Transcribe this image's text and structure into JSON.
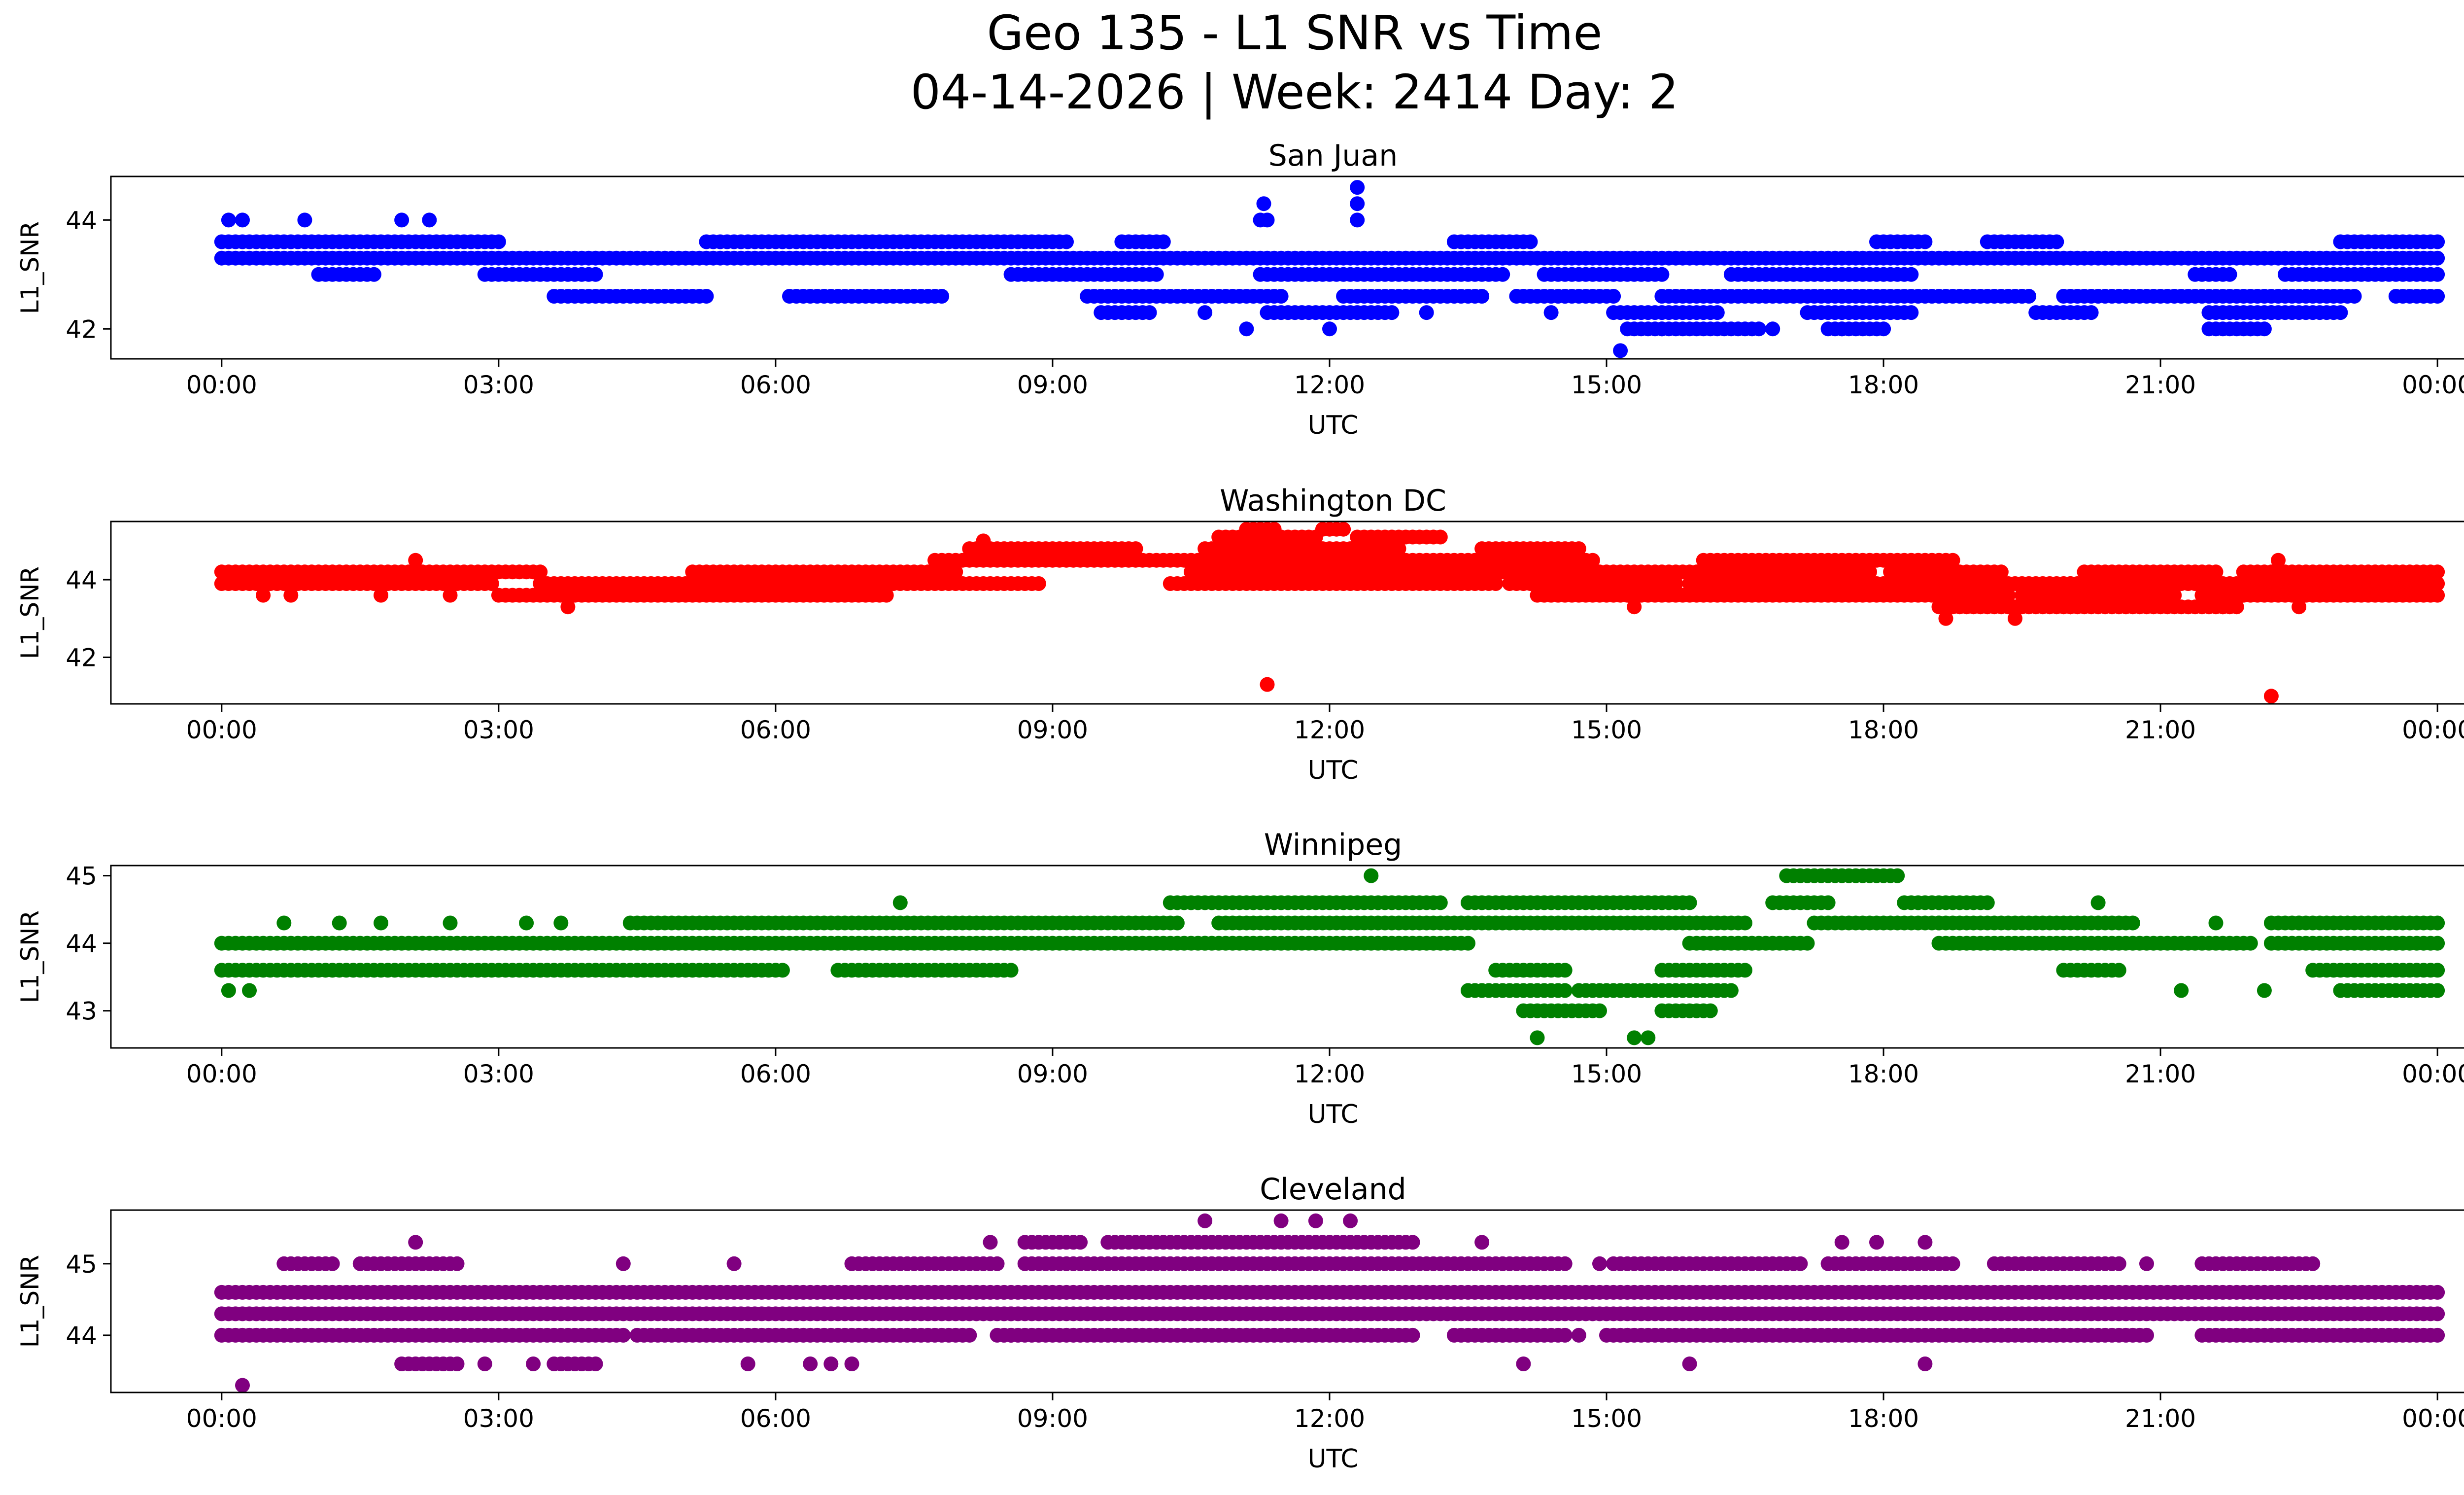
{
  "figure": {
    "title_line1": "Geo 135 - L1 SNR vs Time",
    "title_line2": "04-14-2026 | Week: 2414 Day: 2"
  },
  "chart_data": [
    {
      "type": "scatter",
      "title": "San Juan",
      "xlabel": "UTC",
      "ylabel": "L1_SNR",
      "color": "#0000ff",
      "xlim": [
        -1.6,
        33.7
      ],
      "ylim": [
        41.45,
        44.8
      ],
      "yticks": [
        42,
        44
      ],
      "xticks": [
        0,
        4,
        8,
        12,
        16,
        20,
        24,
        28,
        32
      ],
      "xticklabels": [
        "00:00",
        "03:00",
        "06:00",
        "09:00",
        "12:00",
        "15:00",
        "18:00",
        "21:00",
        "00:00"
      ],
      "levels": [
        {
          "y": 43.6,
          "ranges": [
            [
              0,
              4.0
            ],
            [
              7.0,
              12.2
            ],
            [
              13.0,
              13.6
            ],
            [
              17.8,
              18.9
            ],
            [
              23.9,
              24.6
            ],
            [
              25.5,
              26.5
            ],
            [
              30.6,
              32.0
            ]
          ]
        },
        {
          "y": 43.3,
          "ranges": [
            [
              0,
              32.0
            ]
          ]
        },
        {
          "y": 43.0,
          "ranges": [
            [
              1.4,
              2.2
            ],
            [
              3.8,
              5.4
            ],
            [
              11.4,
              13.5
            ],
            [
              15.0,
              18.5
            ],
            [
              19.1,
              20.8
            ],
            [
              21.8,
              24.4
            ],
            [
              28.5,
              29.0
            ],
            [
              29.8,
              32.0
            ]
          ]
        },
        {
          "y": 42.6,
          "ranges": [
            [
              4.8,
              7.0
            ],
            [
              8.2,
              10.4
            ],
            [
              12.5,
              15.3
            ],
            [
              16.2,
              18.2
            ],
            [
              18.7,
              20.1
            ],
            [
              20.8,
              23.4
            ],
            [
              23.4,
              26.1
            ],
            [
              26.6,
              30.8
            ],
            [
              31.4,
              32.0
            ]
          ]
        },
        {
          "y": 42.3,
          "ranges": [
            [
              12.7,
              13.4
            ],
            [
              15.2,
              16.9
            ],
            [
              20.1,
              21.6
            ],
            [
              22.9,
              24.4
            ],
            [
              26.2,
              27.0
            ],
            [
              28.7,
              30.6
            ]
          ]
        },
        {
          "y": 42.0,
          "ranges": [
            [
              20.3,
              22.2
            ],
            [
              23.2,
              24.0
            ],
            [
              28.8,
              29.5
            ]
          ]
        }
      ],
      "extra_points": [
        [
          0.1,
          44.0
        ],
        [
          0.3,
          44.0
        ],
        [
          1.2,
          44.0
        ],
        [
          2.6,
          44.0
        ],
        [
          3.0,
          44.0
        ],
        [
          15.0,
          44.0
        ],
        [
          15.05,
          44.3
        ],
        [
          15.1,
          44.0
        ],
        [
          16.4,
          44.0
        ],
        [
          16.4,
          44.3
        ],
        [
          16.4,
          44.6
        ],
        [
          14.8,
          42.0
        ],
        [
          14.2,
          42.3
        ],
        [
          15.1,
          42.3
        ],
        [
          16.0,
          42.0
        ],
        [
          17.4,
          42.3
        ],
        [
          19.2,
          42.3
        ],
        [
          19.4,
          42.6
        ],
        [
          20.2,
          41.6
        ],
        [
          20.8,
          42.0
        ],
        [
          22.4,
          42.0
        ],
        [
          23.4,
          42.0
        ],
        [
          23.6,
          42.3
        ],
        [
          26.0,
          42.6
        ],
        [
          28.7,
          42.0
        ],
        [
          29.3,
          42.0
        ],
        [
          29.6,
          42.3
        ]
      ]
    },
    {
      "type": "scatter",
      "title": "Washington DC",
      "xlabel": "UTC",
      "ylabel": "L1_SNR",
      "color": "#ff0000",
      "xlim": [
        -1.6,
        33.7
      ],
      "ylim": [
        40.8,
        45.5
      ],
      "yticks": [
        42,
        44
      ],
      "xticks": [
        0,
        4,
        8,
        12,
        16,
        20,
        24,
        28,
        32
      ],
      "xticklabels": [
        "00:00",
        "03:00",
        "06:00",
        "09:00",
        "12:00",
        "15:00",
        "18:00",
        "21:00",
        "00:00"
      ],
      "levels": [
        {
          "y": 44.2,
          "ranges": [
            [
              0,
              4.6
            ],
            [
              6.8,
              10.6
            ],
            [
              14.0,
              21.8
            ],
            [
              21.9,
              23.8
            ],
            [
              24.1,
              25.7
            ],
            [
              26.9,
              28.8
            ],
            [
              29.2,
              32.0
            ]
          ]
        },
        {
          "y": 43.9,
          "ranges": [
            [
              0,
              3.9
            ],
            [
              4.6,
              9.6
            ],
            [
              9.6,
              11.8
            ],
            [
              13.7,
              18.4
            ],
            [
              18.6,
              21.0
            ],
            [
              21.2,
              26.7
            ],
            [
              26.7,
              32.0
            ]
          ]
        },
        {
          "y": 43.6,
          "ranges": [
            [
              4.0,
              9.6
            ],
            [
              19.0,
              25.8
            ],
            [
              26.0,
              28.2
            ],
            [
              28.6,
              32.0
            ]
          ]
        },
        {
          "y": 43.3,
          "ranges": [
            [
              24.8,
              28.4
            ],
            [
              28.5,
              29.1
            ]
          ]
        },
        {
          "y": 44.5,
          "ranges": [
            [
              10.3,
              17.6
            ],
            [
              17.6,
              19.8
            ],
            [
              21.4,
              25.0
            ]
          ]
        },
        {
          "y": 44.8,
          "ranges": [
            [
              10.8,
              13.2
            ],
            [
              14.2,
              17.0
            ],
            [
              18.2,
              19.6
            ]
          ]
        },
        {
          "y": 45.1,
          "ranges": [
            [
              14.4,
              15.8
            ],
            [
              16.4,
              17.6
            ]
          ]
        },
        {
          "y": 45.3,
          "ranges": [
            [
              14.8,
              15.2
            ],
            [
              15.9,
              16.2
            ]
          ]
        }
      ],
      "extra_points": [
        [
          0.6,
          43.6
        ],
        [
          1.0,
          43.6
        ],
        [
          2.3,
          43.6
        ],
        [
          3.3,
          43.6
        ],
        [
          2.8,
          44.5
        ],
        [
          5.0,
          43.3
        ],
        [
          11.0,
          45.0
        ],
        [
          15.1,
          41.3
        ],
        [
          20.4,
          43.3
        ],
        [
          24.9,
          43.0
        ],
        [
          25.9,
          43.0
        ],
        [
          26.7,
          43.3
        ],
        [
          28.0,
          43.6
        ],
        [
          29.7,
          44.5
        ],
        [
          29.6,
          41.0
        ],
        [
          28.9,
          43.3
        ],
        [
          30.0,
          43.3
        ]
      ]
    },
    {
      "type": "scatter",
      "title": "Winnipeg",
      "xlabel": "UTC",
      "ylabel": "L1_SNR",
      "color": "#008000",
      "xlim": [
        -1.6,
        33.7
      ],
      "ylim": [
        42.45,
        45.15
      ],
      "yticks": [
        43,
        44,
        45
      ],
      "xticks": [
        0,
        4,
        8,
        12,
        16,
        20,
        24,
        28,
        32
      ],
      "xticklabels": [
        "00:00",
        "03:00",
        "06:00",
        "09:00",
        "12:00",
        "15:00",
        "18:00",
        "21:00",
        "00:00"
      ],
      "levels": [
        {
          "y": 44.0,
          "ranges": [
            [
              0,
              14.2
            ],
            [
              14.2,
              18.0
            ],
            [
              21.2,
              22.8
            ],
            [
              24.8,
              29.3
            ],
            [
              29.6,
              32.0
            ]
          ]
        },
        {
          "y": 43.6,
          "ranges": [
            [
              0,
              4.6
            ],
            [
              4.6,
              6.0
            ],
            [
              6.0,
              8.1
            ],
            [
              8.9,
              11.4
            ],
            [
              18.4,
              19.4
            ],
            [
              20.8,
              22.0
            ],
            [
              26.6,
              27.4
            ],
            [
              30.2,
              32.0
            ]
          ]
        },
        {
          "y": 44.3,
          "ranges": [
            [
              5.9,
              13.8
            ],
            [
              14.4,
              18.4
            ],
            [
              18.3,
              22.0
            ],
            [
              23.0,
              24.8
            ],
            [
              24.8,
              27.6
            ],
            [
              29.6,
              32.0
            ]
          ]
        },
        {
          "y": 44.6,
          "ranges": [
            [
              13.7,
              17.6
            ],
            [
              18.0,
              21.2
            ],
            [
              22.4,
              23.2
            ],
            [
              24.3,
              25.5
            ]
          ]
        },
        {
          "y": 43.3,
          "ranges": [
            [
              18.0,
              19.4
            ],
            [
              19.6,
              21.8
            ],
            [
              30.6,
              32.0
            ]
          ]
        },
        {
          "y": 43.0,
          "ranges": [
            [
              18.8,
              19.9
            ],
            [
              20.8,
              21.5
            ]
          ]
        },
        {
          "y": 45.0,
          "ranges": [
            [
              22.6,
              24.2
            ]
          ]
        }
      ],
      "extra_points": [
        [
          0.1,
          43.3
        ],
        [
          0.4,
          43.3
        ],
        [
          0.9,
          44.3
        ],
        [
          1.7,
          44.3
        ],
        [
          2.3,
          44.3
        ],
        [
          3.3,
          44.3
        ],
        [
          4.4,
          44.3
        ],
        [
          4.9,
          44.3
        ],
        [
          9.8,
          44.6
        ],
        [
          9.3,
          43.6
        ],
        [
          9.9,
          43.6
        ],
        [
          15.0,
          44.0
        ],
        [
          17.2,
          44.6
        ],
        [
          16.6,
          45.0
        ],
        [
          18.6,
          44.3
        ],
        [
          21.2,
          43.6
        ],
        [
          19.0,
          42.6
        ],
        [
          20.4,
          42.6
        ],
        [
          20.6,
          42.6
        ],
        [
          21.0,
          43.6
        ],
        [
          22.9,
          44.0
        ],
        [
          27.1,
          44.6
        ],
        [
          28.3,
          43.3
        ],
        [
          29.5,
          43.3
        ],
        [
          28.8,
          44.3
        ],
        [
          30.0,
          44.3
        ]
      ]
    },
    {
      "type": "scatter",
      "title": "Cleveland",
      "xlabel": "UTC",
      "ylabel": "L1_SNR",
      "color": "#800080",
      "xlim": [
        -1.6,
        33.7
      ],
      "ylim": [
        43.2,
        45.75
      ],
      "yticks": [
        44,
        45
      ],
      "xticks": [
        0,
        4,
        8,
        12,
        16,
        20,
        24,
        28,
        32
      ],
      "xticklabels": [
        "00:00",
        "03:00",
        "06:00",
        "09:00",
        "12:00",
        "15:00",
        "18:00",
        "21:00",
        "00:00"
      ],
      "levels": [
        {
          "y": 44.6,
          "ranges": [
            [
              0,
              32.0
            ]
          ]
        },
        {
          "y": 44.3,
          "ranges": [
            [
              0,
              11.4
            ],
            [
              11.4,
              17.2
            ],
            [
              17.2,
              32.0
            ]
          ]
        },
        {
          "y": 44.0,
          "ranges": [
            [
              0,
              5.8
            ],
            [
              6.0,
              10.8
            ],
            [
              11.2,
              17.2
            ],
            [
              17.8,
              19.4
            ],
            [
              20.0,
              27.8
            ],
            [
              28.6,
              32.0
            ]
          ]
        },
        {
          "y": 45.0,
          "ranges": [
            [
              0.9,
              1.6
            ],
            [
              2.0,
              3.4
            ],
            [
              9.1,
              11.2
            ],
            [
              11.6,
              19.4
            ],
            [
              20.1,
              22.8
            ],
            [
              23.2,
              25.0
            ],
            [
              25.6,
              27.4
            ],
            [
              28.6,
              30.2
            ]
          ]
        },
        {
          "y": 45.3,
          "ranges": [
            [
              11.6,
              12.4
            ],
            [
              12.8,
              17.2
            ]
          ]
        },
        {
          "y": 43.6,
          "ranges": [
            [
              2.6,
              3.4
            ],
            [
              4.8,
              5.4
            ]
          ]
        }
      ],
      "extra_points": [
        [
          0.3,
          43.3
        ],
        [
          2.8,
          45.3
        ],
        [
          3.8,
          43.6
        ],
        [
          4.5,
          43.6
        ],
        [
          5.8,
          45.0
        ],
        [
          8.5,
          43.6
        ],
        [
          8.8,
          43.6
        ],
        [
          10.9,
          45.0
        ],
        [
          11.1,
          45.3
        ],
        [
          11.4,
          44.0
        ],
        [
          14.2,
          45.6
        ],
        [
          15.3,
          45.6
        ],
        [
          15.8,
          45.6
        ],
        [
          16.3,
          45.6
        ],
        [
          16.3,
          44.3
        ],
        [
          18.2,
          45.3
        ],
        [
          18.5,
          44.0
        ],
        [
          18.8,
          43.6
        ],
        [
          19.6,
          44.0
        ],
        [
          19.9,
          45.0
        ],
        [
          20.3,
          44.0
        ],
        [
          21.2,
          43.6
        ],
        [
          23.4,
          45.3
        ],
        [
          23.9,
          45.3
        ],
        [
          24.6,
          45.3
        ],
        [
          24.6,
          43.6
        ],
        [
          27.8,
          45.0
        ],
        [
          29.2,
          45.0
        ],
        [
          29.6,
          44.0
        ],
        [
          31.6,
          44.6
        ],
        [
          7.4,
          45.0
        ],
        [
          7.6,
          43.6
        ],
        [
          9.1,
          43.6
        ]
      ]
    }
  ]
}
